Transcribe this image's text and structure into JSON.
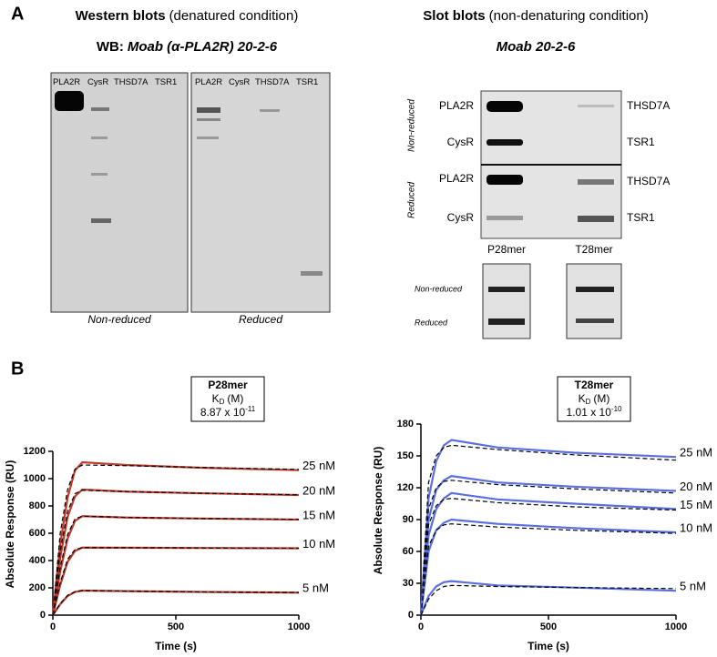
{
  "panel_a": {
    "label": "A",
    "western": {
      "title_bold": "Western blots",
      "title_rest": "(denatured condition)",
      "wb_prefix": "WB:",
      "antibody": "Moab (α-PLA2R) 20-2-6",
      "lanes": [
        "PLA2R",
        "CysR",
        "THSD7A",
        "TSR1"
      ],
      "captions": [
        "Non-reduced",
        "Reduced"
      ]
    },
    "slot": {
      "title_bold": "Slot blots",
      "title_rest": "(non-denaturing condition)",
      "antibody": "Moab 20-2-6",
      "side_labels": [
        "Non-reduced",
        "Reduced"
      ],
      "left_rows": [
        "PLA2R",
        "CysR",
        "PLA2R",
        "CysR"
      ],
      "right_rows": [
        "THSD7A",
        "TSR1",
        "THSD7A",
        "TSR1"
      ],
      "peptides": [
        "P28mer",
        "T28mer"
      ],
      "peptide_rows": [
        "Non-reduced",
        "Reduced"
      ]
    }
  },
  "panel_b": {
    "label": "B"
  },
  "chart_data": [
    {
      "type": "line",
      "title": "P28mer",
      "kd_label": "K",
      "kd_sub": "D",
      "kd_unit": "(M)",
      "kd_value": "8.87 x 10",
      "kd_exp": "-11",
      "x_label": "Time (s)",
      "y_label": "Absolute Response (RU)",
      "x": [
        0,
        30,
        60,
        90,
        120,
        300,
        600,
        1000
      ],
      "xlim": [
        0,
        1000
      ],
      "xticks": [
        0,
        500,
        1000
      ],
      "ylim": [
        0,
        1200
      ],
      "yticks": [
        0,
        200,
        400,
        600,
        800,
        1000,
        1200
      ],
      "fit_color": "#000000",
      "series": [
        {
          "name": "25 nM",
          "color": "#c0392b",
          "values": [
            0,
            520,
            860,
            1060,
            1120,
            1100,
            1080,
            1062
          ],
          "fit": [
            0,
            600,
            920,
            1070,
            1100,
            1095,
            1082,
            1068
          ]
        },
        {
          "name": "20 nM",
          "color": "#c0392b",
          "values": [
            0,
            420,
            720,
            870,
            920,
            905,
            893,
            880
          ],
          "fit": [
            0,
            470,
            760,
            890,
            915,
            905,
            893,
            882
          ]
        },
        {
          "name": "15 nM",
          "color": "#c0392b",
          "values": [
            0,
            320,
            560,
            690,
            725,
            715,
            708,
            700
          ],
          "fit": [
            0,
            350,
            590,
            705,
            725,
            716,
            708,
            702
          ]
        },
        {
          "name": "10 nM",
          "color": "#c0392b",
          "values": [
            0,
            220,
            390,
            470,
            495,
            494,
            492,
            490
          ],
          "fit": [
            0,
            240,
            410,
            480,
            495,
            494,
            492,
            490
          ]
        },
        {
          "name": "5 nM",
          "color": "#c0392b",
          "values": [
            0,
            80,
            140,
            170,
            180,
            176,
            170,
            165
          ],
          "fit": [
            0,
            85,
            145,
            172,
            180,
            176,
            170,
            166
          ]
        }
      ]
    },
    {
      "type": "line",
      "title": "T28mer",
      "kd_label": "K",
      "kd_sub": "D",
      "kd_unit": "(M)",
      "kd_value": "1.01 x 10",
      "kd_exp": "-10",
      "x_label": "Time (s)",
      "y_label": "Absolute Response (RU)",
      "x": [
        0,
        30,
        60,
        90,
        120,
        300,
        600,
        1000
      ],
      "xlim": [
        0,
        1000
      ],
      "xticks": [
        0,
        500,
        1000
      ],
      "ylim": [
        0,
        180
      ],
      "yticks": [
        0,
        30,
        60,
        90,
        120,
        150,
        180
      ],
      "fit_color": "#000000",
      "series": [
        {
          "name": "25 nM",
          "color": "#5b6ee1",
          "values": [
            0,
            110,
            145,
            160,
            165,
            158,
            153,
            149
          ],
          "fit": [
            0,
            125,
            150,
            158,
            160,
            156,
            151,
            146
          ]
        },
        {
          "name": "20 nM",
          "color": "#5b6ee1",
          "values": [
            0,
            90,
            118,
            127,
            131,
            125,
            121,
            117
          ],
          "fit": [
            0,
            100,
            120,
            126,
            127,
            123,
            119,
            115
          ]
        },
        {
          "name": "15 nM",
          "color": "#5b6ee1",
          "values": [
            0,
            75,
            100,
            110,
            115,
            109,
            105,
            100
          ],
          "fit": [
            0,
            85,
            103,
            109,
            110,
            106,
            102,
            99
          ]
        },
        {
          "name": "10 nM",
          "color": "#5b6ee1",
          "values": [
            0,
            60,
            80,
            87,
            90,
            86,
            82,
            78
          ],
          "fit": [
            0,
            65,
            80,
            85,
            86,
            83,
            80,
            77
          ]
        },
        {
          "name": "5 nM",
          "color": "#5b6ee1",
          "values": [
            0,
            18,
            27,
            31,
            32,
            28,
            26,
            23
          ],
          "fit": [
            0,
            15,
            23,
            27,
            28,
            27,
            26,
            25
          ]
        }
      ]
    }
  ]
}
